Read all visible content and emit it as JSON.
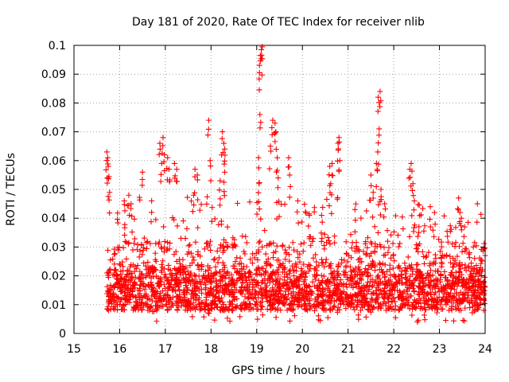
{
  "chart_data": {
    "type": "scatter",
    "title": "Day 181 of 2020, Rate Of TEC Index for receiver nlib",
    "xlabel": "GPS time / hours",
    "ylabel": "ROTI / TECUs",
    "xlim": [
      15,
      24
    ],
    "ylim": [
      0,
      0.1
    ],
    "x_ticks": [
      15,
      16,
      17,
      18,
      19,
      20,
      21,
      22,
      23,
      24
    ],
    "x_tick_labels": [
      "15",
      "16",
      "17",
      "18",
      "19",
      "20",
      "21",
      "22",
      "23",
      "24"
    ],
    "y_ticks": [
      0,
      0.01,
      0.02,
      0.03,
      0.04,
      0.05,
      0.06,
      0.07,
      0.08,
      0.09,
      0.1
    ],
    "y_tick_labels": [
      "0",
      "0.01",
      "0.02",
      "0.03",
      "0.04",
      "0.05",
      "0.06",
      "0.07",
      "0.08",
      "0.09",
      "0.1"
    ],
    "grid": true,
    "marker": "+",
    "color": "#ff0000",
    "data_start_hour": 15.72,
    "data_end_hour": 24.0,
    "baseline_range": [
      0.005,
      0.025
    ],
    "series": [
      {
        "name": "ROTI",
        "notable_points": [
          {
            "x": 15.72,
            "y": 0.063
          },
          {
            "x": 15.74,
            "y": 0.061
          },
          {
            "x": 15.75,
            "y": 0.058
          },
          {
            "x": 15.73,
            "y": 0.054
          },
          {
            "x": 15.78,
            "y": 0.049
          },
          {
            "x": 16.1,
            "y": 0.046
          },
          {
            "x": 16.2,
            "y": 0.048
          },
          {
            "x": 16.25,
            "y": 0.045
          },
          {
            "x": 16.5,
            "y": 0.056
          },
          {
            "x": 16.7,
            "y": 0.046
          },
          {
            "x": 16.88,
            "y": 0.066
          },
          {
            "x": 16.95,
            "y": 0.068
          },
          {
            "x": 16.98,
            "y": 0.062
          },
          {
            "x": 17.05,
            "y": 0.061
          },
          {
            "x": 17.08,
            "y": 0.057
          },
          {
            "x": 16.92,
            "y": 0.059
          },
          {
            "x": 17.2,
            "y": 0.059
          },
          {
            "x": 17.25,
            "y": 0.057
          },
          {
            "x": 17.65,
            "y": 0.057
          },
          {
            "x": 17.7,
            "y": 0.055
          },
          {
            "x": 17.62,
            "y": 0.048
          },
          {
            "x": 17.95,
            "y": 0.074
          },
          {
            "x": 17.98,
            "y": 0.06
          },
          {
            "x": 18.2,
            "y": 0.053
          },
          {
            "x": 18.25,
            "y": 0.07
          },
          {
            "x": 18.28,
            "y": 0.066
          },
          {
            "x": 18.3,
            "y": 0.064
          },
          {
            "x": 18.3,
            "y": 0.056
          },
          {
            "x": 19.05,
            "y": 0.052
          },
          {
            "x": 19.06,
            "y": 0.0905
          },
          {
            "x": 19.08,
            "y": 0.0965
          },
          {
            "x": 19.1,
            "y": 0.0985
          },
          {
            "x": 19.12,
            "y": 0.0995
          },
          {
            "x": 19.07,
            "y": 0.076
          },
          {
            "x": 19.04,
            "y": 0.061
          },
          {
            "x": 19.3,
            "y": 0.065
          },
          {
            "x": 19.35,
            "y": 0.074
          },
          {
            "x": 19.4,
            "y": 0.073
          },
          {
            "x": 19.42,
            "y": 0.07
          },
          {
            "x": 19.45,
            "y": 0.061
          },
          {
            "x": 19.47,
            "y": 0.054
          },
          {
            "x": 19.7,
            "y": 0.061
          },
          {
            "x": 19.72,
            "y": 0.055
          },
          {
            "x": 19.9,
            "y": 0.046
          },
          {
            "x": 20.15,
            "y": 0.041
          },
          {
            "x": 20.42,
            "y": 0.041
          },
          {
            "x": 20.6,
            "y": 0.058
          },
          {
            "x": 20.65,
            "y": 0.059
          },
          {
            "x": 20.62,
            "y": 0.052
          },
          {
            "x": 20.78,
            "y": 0.066
          },
          {
            "x": 20.8,
            "y": 0.068
          },
          {
            "x": 20.82,
            "y": 0.06
          },
          {
            "x": 21.15,
            "y": 0.043
          },
          {
            "x": 21.5,
            "y": 0.055
          },
          {
            "x": 21.55,
            "y": 0.049
          },
          {
            "x": 21.62,
            "y": 0.059
          },
          {
            "x": 21.65,
            "y": 0.063
          },
          {
            "x": 21.68,
            "y": 0.071
          },
          {
            "x": 21.66,
            "y": 0.082
          },
          {
            "x": 21.7,
            "y": 0.084
          },
          {
            "x": 21.72,
            "y": 0.05
          },
          {
            "x": 21.8,
            "y": 0.045
          },
          {
            "x": 22.35,
            "y": 0.057
          },
          {
            "x": 22.38,
            "y": 0.059
          },
          {
            "x": 22.42,
            "y": 0.052
          },
          {
            "x": 22.45,
            "y": 0.046
          },
          {
            "x": 22.8,
            "y": 0.044
          },
          {
            "x": 23.42,
            "y": 0.047
          },
          {
            "x": 23.45,
            "y": 0.042
          },
          {
            "x": 23.48,
            "y": 0.04
          },
          {
            "x": 23.55,
            "y": 0.037
          }
        ]
      }
    ]
  }
}
